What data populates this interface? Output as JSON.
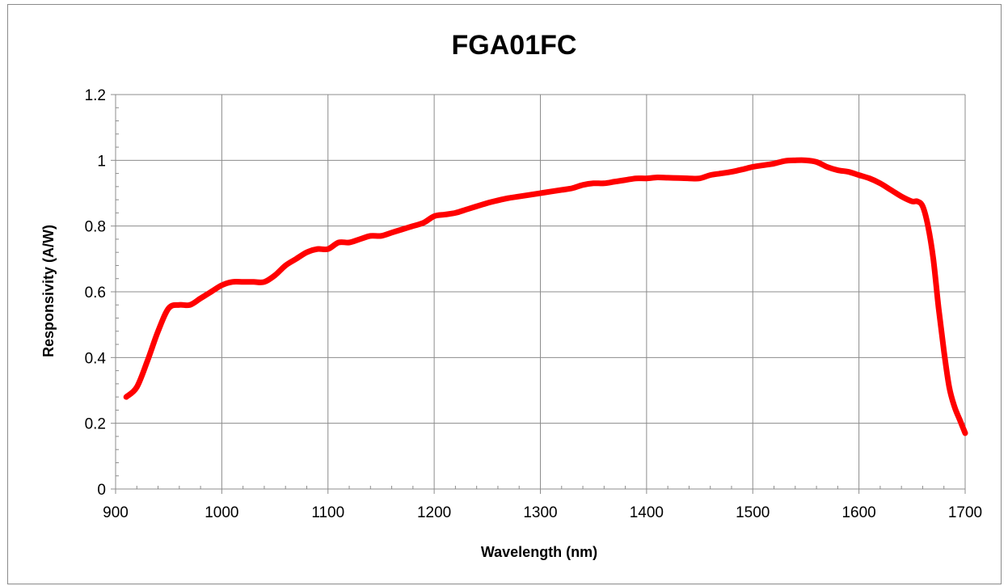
{
  "chart_data": {
    "type": "line",
    "title": "FGA01FC",
    "xlabel": "Wavelength (nm)",
    "ylabel": "Responsivity (A/W)",
    "xlim": [
      900,
      1700
    ],
    "ylim": [
      0,
      1.2
    ],
    "x_ticks": [
      900,
      1000,
      1100,
      1200,
      1300,
      1400,
      1500,
      1600,
      1700
    ],
    "y_ticks": [
      0,
      0.2,
      0.4,
      0.6,
      0.8,
      1,
      1.2
    ],
    "x_tick_labels": [
      "900",
      "1000",
      "1100",
      "1200",
      "1300",
      "1400",
      "1500",
      "1600",
      "1700"
    ],
    "y_tick_labels": [
      "0",
      "0.2",
      "0.4",
      "0.6",
      "0.8",
      "1",
      "1.2"
    ],
    "grid": true,
    "legend": "none",
    "line_color": "#ff0000",
    "series": [
      {
        "x": [
          910,
          920,
          930,
          940,
          950,
          960,
          970,
          980,
          990,
          1000,
          1010,
          1020,
          1030,
          1040,
          1050,
          1060,
          1070,
          1080,
          1090,
          1100,
          1110,
          1120,
          1130,
          1140,
          1150,
          1160,
          1170,
          1180,
          1190,
          1200,
          1210,
          1220,
          1230,
          1240,
          1250,
          1260,
          1270,
          1280,
          1290,
          1300,
          1310,
          1320,
          1330,
          1340,
          1350,
          1360,
          1370,
          1380,
          1390,
          1400,
          1410,
          1420,
          1430,
          1440,
          1450,
          1460,
          1470,
          1480,
          1490,
          1500,
          1510,
          1520,
          1530,
          1540,
          1550,
          1560,
          1570,
          1580,
          1590,
          1600,
          1610,
          1620,
          1630,
          1640,
          1650,
          1655,
          1660,
          1665,
          1670,
          1675,
          1680,
          1685,
          1690,
          1695,
          1700
        ],
        "y": [
          0.28,
          0.31,
          0.39,
          0.48,
          0.55,
          0.56,
          0.56,
          0.58,
          0.6,
          0.62,
          0.63,
          0.63,
          0.63,
          0.63,
          0.65,
          0.68,
          0.7,
          0.72,
          0.73,
          0.73,
          0.75,
          0.75,
          0.76,
          0.77,
          0.77,
          0.78,
          0.79,
          0.8,
          0.81,
          0.83,
          0.835,
          0.84,
          0.85,
          0.86,
          0.87,
          0.878,
          0.885,
          0.89,
          0.895,
          0.9,
          0.905,
          0.91,
          0.915,
          0.925,
          0.93,
          0.93,
          0.935,
          0.94,
          0.945,
          0.945,
          0.948,
          0.947,
          0.946,
          0.945,
          0.945,
          0.955,
          0.96,
          0.965,
          0.972,
          0.98,
          0.985,
          0.99,
          0.998,
          1.0,
          1.0,
          0.995,
          0.98,
          0.97,
          0.965,
          0.955,
          0.945,
          0.93,
          0.91,
          0.89,
          0.875,
          0.875,
          0.86,
          0.8,
          0.7,
          0.55,
          0.42,
          0.31,
          0.25,
          0.21,
          0.17
        ]
      }
    ]
  }
}
